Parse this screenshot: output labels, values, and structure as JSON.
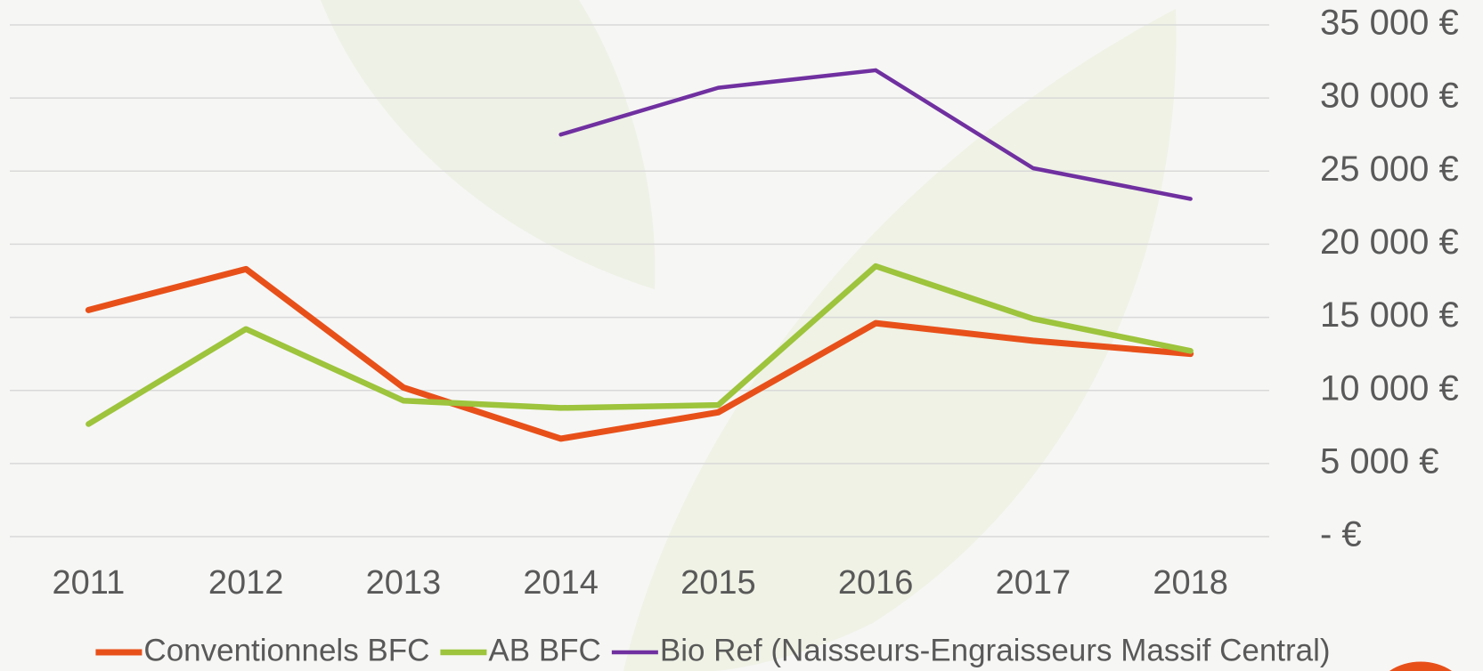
{
  "chart_data": {
    "type": "line",
    "categories": [
      "2011",
      "2012",
      "2013",
      "2014",
      "2015",
      "2016",
      "2017",
      "2018"
    ],
    "series": [
      {
        "name": "Conventionnels BFC",
        "color": "#e8501a",
        "values": [
          15500,
          18300,
          10200,
          6700,
          8500,
          14600,
          13400,
          12500
        ]
      },
      {
        "name": "AB BFC",
        "color": "#9dc43c",
        "values": [
          7700,
          14200,
          9300,
          8800,
          9000,
          18500,
          14900,
          12700
        ]
      },
      {
        "name": "Bio Ref (Naisseurs-Engraisseurs Massif Central)",
        "color": "#7030a0",
        "values": [
          null,
          null,
          null,
          27500,
          30700,
          31900,
          25200,
          23100
        ]
      }
    ],
    "ylim": [
      0,
      35000
    ],
    "yticks": [
      {
        "value": 0,
        "label": "-   €"
      },
      {
        "value": 5000,
        "label": "5 000 €"
      },
      {
        "value": 10000,
        "label": "10 000 €"
      },
      {
        "value": 15000,
        "label": "15 000 €"
      },
      {
        "value": 20000,
        "label": "20 000 €"
      },
      {
        "value": 25000,
        "label": "25 000 €"
      },
      {
        "value": 30000,
        "label": "30 000 €"
      },
      {
        "value": 35000,
        "label": "35 000 €"
      }
    ],
    "grid": true,
    "y_axis_side": "right",
    "legend": "bottom"
  }
}
